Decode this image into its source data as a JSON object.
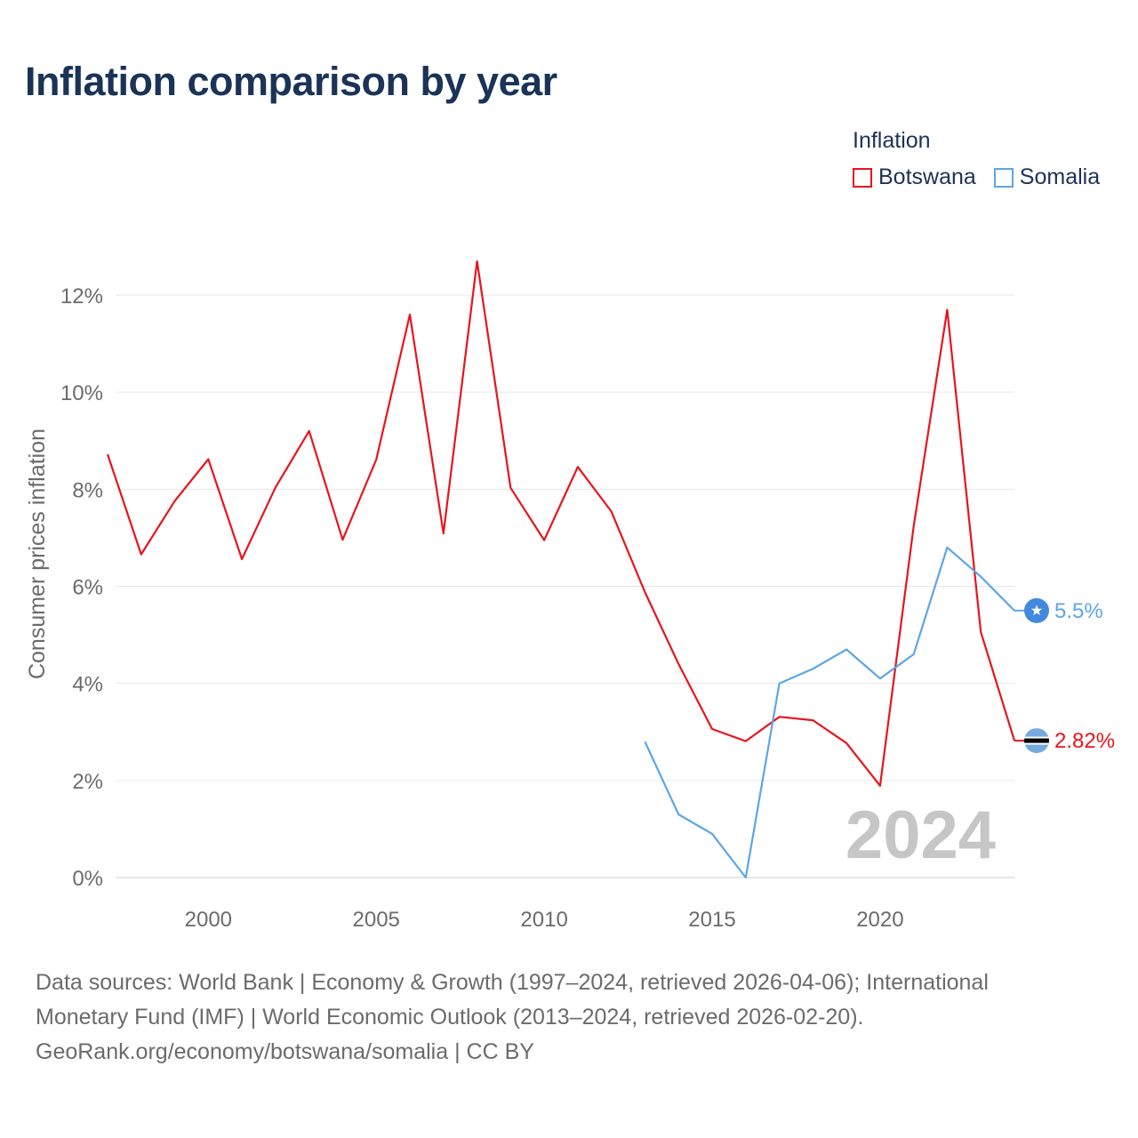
{
  "title": "Inflation comparison by year",
  "legend": {
    "title": "Inflation",
    "items": [
      {
        "label": "Botswana",
        "color": "#e8141c"
      },
      {
        "label": "Somalia",
        "color": "#5ca6e6"
      }
    ]
  },
  "watermark_year": "2024",
  "footer": {
    "line1": "Data sources: World Bank | Economy & Growth (1997–2024, retrieved 2026-04-06); International",
    "line2": "Monetary Fund (IMF) | World Economic Outlook (2013–2024, retrieved 2026-02-20).",
    "line3": "GeoRank.org/economy/botswana/somalia | CC BY"
  },
  "chart_data": {
    "type": "line",
    "title": "Inflation comparison by year",
    "xlabel": "",
    "ylabel": "Consumer prices inflation",
    "xlim": [
      1997,
      2024
    ],
    "ylim": [
      0,
      12
    ],
    "x_ticks": [
      2000,
      2005,
      2010,
      2015,
      2020
    ],
    "y_ticks": [
      0,
      2,
      4,
      6,
      8,
      10,
      12
    ],
    "y_tick_labels": [
      "0%",
      "2%",
      "4%",
      "6%",
      "8%",
      "10%",
      "12%"
    ],
    "grid": true,
    "series": [
      {
        "name": "Botswana",
        "color": "#e8141c",
        "end_label": "2.82%",
        "x": [
          1997,
          1998,
          1999,
          2000,
          2001,
          2002,
          2003,
          2004,
          2005,
          2006,
          2007,
          2008,
          2009,
          2010,
          2011,
          2012,
          2013,
          2014,
          2015,
          2016,
          2017,
          2018,
          2019,
          2020,
          2021,
          2022,
          2023,
          2024
        ],
        "values": [
          8.72,
          6.66,
          7.76,
          8.62,
          6.56,
          8.04,
          9.2,
          6.96,
          8.61,
          11.6,
          7.09,
          12.7,
          8.03,
          6.95,
          8.46,
          7.54,
          5.88,
          4.4,
          3.06,
          2.81,
          3.31,
          3.24,
          2.77,
          1.89,
          7.24,
          11.7,
          5.06,
          2.82
        ]
      },
      {
        "name": "Somalia",
        "color": "#5ca6e6",
        "end_label": "5.5%",
        "x": [
          2013,
          2014,
          2015,
          2016,
          2017,
          2018,
          2019,
          2020,
          2021,
          2022,
          2023,
          2024
        ],
        "values": [
          2.8,
          1.3,
          0.9,
          0.0,
          4.0,
          4.3,
          4.7,
          4.1,
          4.6,
          6.8,
          6.2,
          5.5
        ]
      }
    ]
  }
}
